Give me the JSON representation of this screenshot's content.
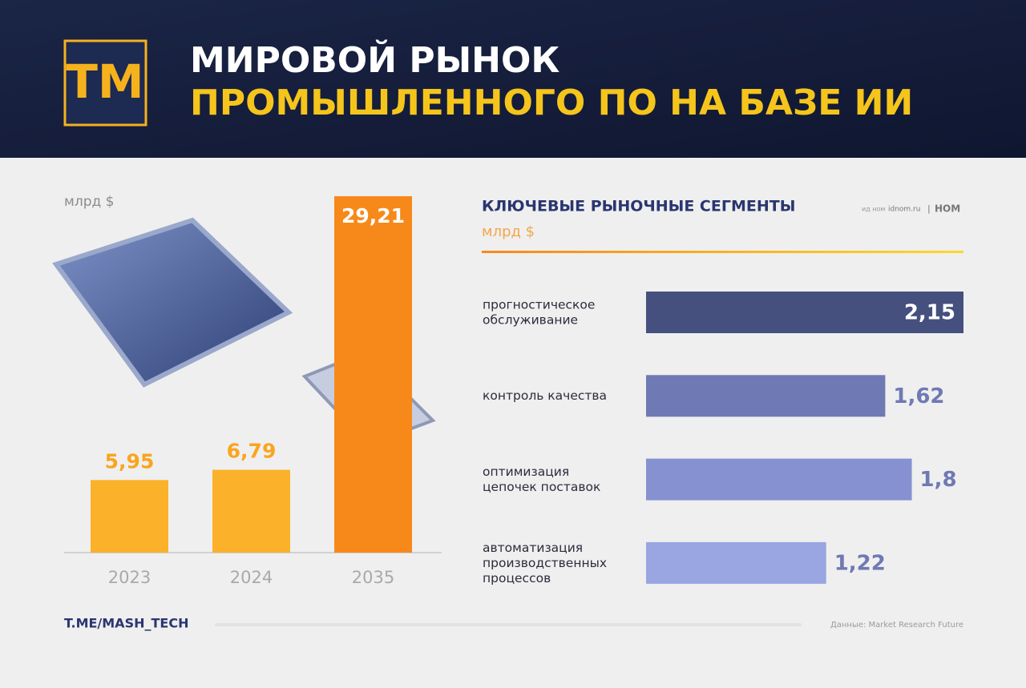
{
  "header": {
    "logo": "ТМ",
    "title_line1": "МИРОВОЙ РЫНОК",
    "title_line2": "ПРОМЫШЛЕННОГО ПО НА БАЗЕ ИИ"
  },
  "chart_data": [
    {
      "type": "bar",
      "unit": "млрд $",
      "categories": [
        "2023",
        "2024",
        "2035"
      ],
      "values": [
        5.95,
        6.79,
        29.21
      ],
      "value_labels": [
        "5,95",
        "6,79",
        "29,21"
      ],
      "colors": [
        "#fbb12a",
        "#fbb12a",
        "#f7891a"
      ]
    },
    {
      "type": "hbar",
      "title": "КЛЮЧЕВЫЕ РЫНОЧНЫЕ СЕГМЕНТЫ",
      "unit": "млрд $",
      "categories": [
        "прогностическое\nобслуживание",
        "контроль качества",
        "оптимизация\nцепочек поставок",
        "автоматизация\nпроизводственных\nпроцессов"
      ],
      "values": [
        2.15,
        1.62,
        1.8,
        1.22
      ],
      "value_labels": [
        "2,15",
        "1,62",
        "1,8",
        "1,22"
      ],
      "colors": [
        "#45507e",
        "#6f79b3",
        "#8591d1",
        "#9aa6e2"
      ]
    }
  ],
  "branding": {
    "publisher": "ид ном",
    "site": "idnom.ru",
    "brand": "НОМ"
  },
  "footer": {
    "channel": "T.ME/MASH_TECH",
    "source": "Данные: Market Research Future"
  }
}
